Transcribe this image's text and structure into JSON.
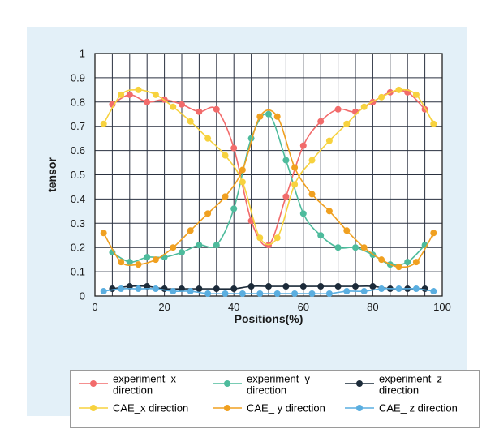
{
  "chart_data": {
    "type": "line",
    "xlabel": "Positions(%)",
    "ylabel": "tensor",
    "xlim": [
      0,
      100
    ],
    "ylim": [
      0,
      1
    ],
    "xticks": [
      0,
      20,
      40,
      60,
      80,
      100
    ],
    "yticks": [
      0,
      0.1,
      0.2,
      0.3,
      0.4,
      0.5,
      0.6,
      0.7,
      0.8,
      0.9,
      1
    ],
    "grid": true,
    "legend_position": "bottom",
    "x": [
      2.5,
      5,
      7.5,
      10,
      12.5,
      15,
      17.5,
      20,
      22.5,
      25,
      27.5,
      30,
      32.5,
      35,
      37.5,
      40,
      42.5,
      45,
      47.5,
      50,
      52.5,
      55,
      57.5,
      60,
      62.5,
      65,
      67.5,
      70,
      72.5,
      75,
      77.5,
      80,
      82.5,
      85,
      87.5,
      90,
      92.5,
      95,
      97.5
    ],
    "series": [
      {
        "name": "experiment_x direction",
        "color": "#f26b6b",
        "points": [
          [
            5,
            0.79
          ],
          [
            10,
            0.83
          ],
          [
            15,
            0.8
          ],
          [
            20,
            0.81
          ],
          [
            25,
            0.79
          ],
          [
            30,
            0.76
          ],
          [
            35,
            0.77
          ],
          [
            40,
            0.61
          ],
          [
            45,
            0.31
          ],
          [
            50,
            0.21
          ],
          [
            55,
            0.41
          ],
          [
            60,
            0.62
          ],
          [
            65,
            0.72
          ],
          [
            70,
            0.77
          ],
          [
            75,
            0.76
          ],
          [
            80,
            0.8
          ],
          [
            85,
            0.84
          ],
          [
            90,
            0.84
          ],
          [
            95,
            0.77
          ]
        ]
      },
      {
        "name": "experiment_y direction",
        "color": "#4dbb9c",
        "points": [
          [
            5,
            0.18
          ],
          [
            10,
            0.14
          ],
          [
            15,
            0.16
          ],
          [
            20,
            0.16
          ],
          [
            25,
            0.18
          ],
          [
            30,
            0.21
          ],
          [
            35,
            0.21
          ],
          [
            40,
            0.36
          ],
          [
            45,
            0.65
          ],
          [
            50,
            0.75
          ],
          [
            55,
            0.56
          ],
          [
            60,
            0.34
          ],
          [
            65,
            0.25
          ],
          [
            70,
            0.2
          ],
          [
            75,
            0.2
          ],
          [
            80,
            0.17
          ],
          [
            85,
            0.13
          ],
          [
            90,
            0.14
          ],
          [
            95,
            0.21
          ]
        ]
      },
      {
        "name": "experiment_z direction",
        "color": "#1c2b3a",
        "points": [
          [
            5,
            0.03
          ],
          [
            10,
            0.04
          ],
          [
            15,
            0.04
          ],
          [
            20,
            0.03
          ],
          [
            25,
            0.03
          ],
          [
            30,
            0.03
          ],
          [
            35,
            0.03
          ],
          [
            40,
            0.03
          ],
          [
            45,
            0.04
          ],
          [
            50,
            0.04
          ],
          [
            55,
            0.04
          ],
          [
            60,
            0.04
          ],
          [
            65,
            0.04
          ],
          [
            70,
            0.04
          ],
          [
            75,
            0.04
          ],
          [
            80,
            0.04
          ],
          [
            85,
            0.03
          ],
          [
            90,
            0.03
          ],
          [
            95,
            0.03
          ]
        ]
      },
      {
        "name": "CAE_x direction",
        "color": "#f7d23e",
        "points": [
          [
            2.5,
            0.71
          ],
          [
            7.5,
            0.83
          ],
          [
            12.5,
            0.85
          ],
          [
            17.5,
            0.83
          ],
          [
            22.5,
            0.78
          ],
          [
            27.5,
            0.72
          ],
          [
            32.5,
            0.65
          ],
          [
            37.5,
            0.58
          ],
          [
            42.5,
            0.47
          ],
          [
            47.5,
            0.24
          ],
          [
            52.5,
            0.24
          ],
          [
            57.5,
            0.46
          ],
          [
            62.5,
            0.56
          ],
          [
            67.5,
            0.64
          ],
          [
            72.5,
            0.71
          ],
          [
            77.5,
            0.78
          ],
          [
            82.5,
            0.82
          ],
          [
            87.5,
            0.85
          ],
          [
            92.5,
            0.83
          ],
          [
            97.5,
            0.71
          ]
        ]
      },
      {
        "name": "CAE_ y direction",
        "color": "#f0a020",
        "points": [
          [
            2.5,
            0.26
          ],
          [
            7.5,
            0.14
          ],
          [
            12.5,
            0.13
          ],
          [
            17.5,
            0.15
          ],
          [
            22.5,
            0.2
          ],
          [
            27.5,
            0.27
          ],
          [
            32.5,
            0.34
          ],
          [
            37.5,
            0.41
          ],
          [
            42.5,
            0.52
          ],
          [
            47.5,
            0.74
          ],
          [
            52.5,
            0.74
          ],
          [
            57.5,
            0.53
          ],
          [
            62.5,
            0.42
          ],
          [
            67.5,
            0.35
          ],
          [
            72.5,
            0.27
          ],
          [
            77.5,
            0.2
          ],
          [
            82.5,
            0.15
          ],
          [
            87.5,
            0.12
          ],
          [
            92.5,
            0.14
          ],
          [
            97.5,
            0.26
          ]
        ]
      },
      {
        "name": "CAE_ z direction",
        "color": "#5aaee0",
        "points": [
          [
            2.5,
            0.02
          ],
          [
            7.5,
            0.03
          ],
          [
            12.5,
            0.03
          ],
          [
            17.5,
            0.03
          ],
          [
            22.5,
            0.02
          ],
          [
            27.5,
            0.02
          ],
          [
            32.5,
            0.01
          ],
          [
            37.5,
            0.01
          ],
          [
            42.5,
            0.01
          ],
          [
            47.5,
            0.01
          ],
          [
            52.5,
            0.01
          ],
          [
            57.5,
            0.01
          ],
          [
            62.5,
            0.01
          ],
          [
            67.5,
            0.01
          ],
          [
            72.5,
            0.02
          ],
          [
            77.5,
            0.02
          ],
          [
            82.5,
            0.03
          ],
          [
            87.5,
            0.03
          ],
          [
            92.5,
            0.03
          ],
          [
            97.5,
            0.02
          ]
        ]
      }
    ]
  }
}
